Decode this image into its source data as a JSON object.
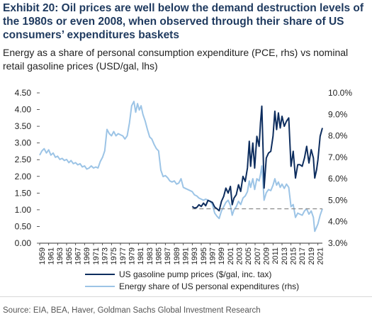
{
  "title": "Exhibit 20: Oil prices are well below the demand destruction levels of the 1980s or even 2008, when observed through their share of US consumers’ expenditures baskets",
  "subtitle": "Energy as a share of personal consumption expenditure (PCE, rhs) vs nominal retail gasoline prices (USD/gal, lhs)",
  "source": "Source: EIA, BEA, Haver, Goldman Sachs Global Investment Research",
  "colors": {
    "gasoline": "#0d2d5e",
    "energy_share": "#9cc4e6",
    "reference_line": "#8a8a8a",
    "axis": "#333333"
  },
  "chart_data": {
    "type": "line",
    "title": "",
    "xlabel": "",
    "ylabel_left": "",
    "ylabel_right": "",
    "xlim": [
      1959,
      2022
    ],
    "ylim_left": [
      0,
      4.5
    ],
    "ylim_right": [
      3,
      10
    ],
    "y_ticks_left": [
      "0.00",
      "0.50",
      "1.00",
      "1.50",
      "2.00",
      "2.50",
      "3.00",
      "3.50",
      "4.00",
      "4.50"
    ],
    "y_ticks_right": [
      "3.0%",
      "4.0%",
      "5.0%",
      "6.0%",
      "7.0%",
      "8.0%",
      "9.0%",
      "10.0%"
    ],
    "x_ticks": [
      "1959",
      "1961",
      "1963",
      "1965",
      "1967",
      "1969",
      "1971",
      "1973",
      "1975",
      "1977",
      "1979",
      "1981",
      "1983",
      "1985",
      "1987",
      "1989",
      "1991",
      "1993",
      "1995",
      "1997",
      "1999",
      "2001",
      "2003",
      "2005",
      "2007",
      "2009",
      "2011",
      "2013",
      "2015",
      "2017",
      "2019",
      "2021"
    ],
    "grid": false,
    "legend_position": "bottom",
    "series": [
      {
        "name": "US gasoline pump prices ($/gal, inc. tax)",
        "axis": "left",
        "points": [
          [
            1993.0,
            1.1
          ],
          [
            1993.5,
            1.05
          ],
          [
            1994.0,
            1.07
          ],
          [
            1994.5,
            1.15
          ],
          [
            1995.0,
            1.1
          ],
          [
            1995.5,
            1.2
          ],
          [
            1996.0,
            1.12
          ],
          [
            1996.5,
            1.28
          ],
          [
            1997.0,
            1.25
          ],
          [
            1997.5,
            1.22
          ],
          [
            1998.0,
            1.08
          ],
          [
            1998.5,
            1.03
          ],
          [
            1999.0,
            0.97
          ],
          [
            1999.5,
            1.25
          ],
          [
            2000.0,
            1.4
          ],
          [
            2000.5,
            1.65
          ],
          [
            2001.0,
            1.5
          ],
          [
            2001.5,
            1.7
          ],
          [
            2001.9,
            1.15
          ],
          [
            2002.3,
            1.35
          ],
          [
            2002.8,
            1.45
          ],
          [
            2003.3,
            1.75
          ],
          [
            2003.8,
            1.55
          ],
          [
            2004.3,
            2.0
          ],
          [
            2004.8,
            1.85
          ],
          [
            2005.3,
            2.25
          ],
          [
            2005.7,
            3.05
          ],
          [
            2006.0,
            2.3
          ],
          [
            2006.5,
            3.0
          ],
          [
            2006.9,
            2.25
          ],
          [
            2007.4,
            3.2
          ],
          [
            2007.9,
            2.9
          ],
          [
            2008.2,
            3.6
          ],
          [
            2008.5,
            4.1
          ],
          [
            2008.8,
            2.7
          ],
          [
            2009.0,
            1.65
          ],
          [
            2009.5,
            2.55
          ],
          [
            2010.0,
            2.7
          ],
          [
            2010.5,
            2.75
          ],
          [
            2011.0,
            3.2
          ],
          [
            2011.4,
            3.95
          ],
          [
            2011.8,
            3.4
          ],
          [
            2012.2,
            3.9
          ],
          [
            2012.6,
            3.45
          ],
          [
            2013.0,
            3.8
          ],
          [
            2013.5,
            3.5
          ],
          [
            2014.0,
            3.65
          ],
          [
            2014.5,
            3.75
          ],
          [
            2015.0,
            2.3
          ],
          [
            2015.5,
            2.75
          ],
          [
            2016.0,
            1.95
          ],
          [
            2016.5,
            2.35
          ],
          [
            2017.0,
            2.35
          ],
          [
            2017.5,
            2.3
          ],
          [
            2018.0,
            2.55
          ],
          [
            2018.5,
            2.9
          ],
          [
            2019.0,
            2.4
          ],
          [
            2019.5,
            2.8
          ],
          [
            2020.0,
            2.55
          ],
          [
            2020.3,
            1.95
          ],
          [
            2020.7,
            2.2
          ],
          [
            2021.0,
            2.5
          ],
          [
            2021.5,
            3.2
          ],
          [
            2022.0,
            3.45
          ]
        ]
      },
      {
        "name": "Energy share of US personal expenditures (rhs)",
        "axis": "right",
        "points": [
          [
            1959.0,
            7.1
          ],
          [
            1959.5,
            7.3
          ],
          [
            1960.0,
            7.4
          ],
          [
            1960.5,
            7.2
          ],
          [
            1961.0,
            7.35
          ],
          [
            1961.5,
            7.1
          ],
          [
            1962.0,
            7.2
          ],
          [
            1962.5,
            7.0
          ],
          [
            1963.0,
            7.05
          ],
          [
            1963.5,
            6.9
          ],
          [
            1964.0,
            6.95
          ],
          [
            1964.5,
            6.85
          ],
          [
            1965.0,
            6.9
          ],
          [
            1965.5,
            6.75
          ],
          [
            1966.0,
            6.85
          ],
          [
            1966.5,
            6.7
          ],
          [
            1967.0,
            6.75
          ],
          [
            1967.5,
            6.65
          ],
          [
            1968.0,
            6.7
          ],
          [
            1968.5,
            6.55
          ],
          [
            1969.0,
            6.6
          ],
          [
            1969.5,
            6.45
          ],
          [
            1970.0,
            6.5
          ],
          [
            1970.5,
            6.6
          ],
          [
            1971.0,
            6.5
          ],
          [
            1971.5,
            6.55
          ],
          [
            1972.0,
            6.5
          ],
          [
            1972.5,
            6.8
          ],
          [
            1973.0,
            7.0
          ],
          [
            1973.5,
            7.3
          ],
          [
            1974.0,
            8.3
          ],
          [
            1974.5,
            8.1
          ],
          [
            1975.0,
            8.0
          ],
          [
            1975.5,
            8.2
          ],
          [
            1976.0,
            8.0
          ],
          [
            1976.5,
            8.1
          ],
          [
            1977.0,
            8.05
          ],
          [
            1977.5,
            8.0
          ],
          [
            1978.0,
            7.85
          ],
          [
            1978.5,
            8.0
          ],
          [
            1979.0,
            8.6
          ],
          [
            1979.5,
            9.4
          ],
          [
            1980.0,
            9.6
          ],
          [
            1980.4,
            9.1
          ],
          [
            1980.8,
            9.5
          ],
          [
            1981.2,
            9.2
          ],
          [
            1981.6,
            9.4
          ],
          [
            1982.0,
            9.0
          ],
          [
            1982.5,
            8.7
          ],
          [
            1983.0,
            8.3
          ],
          [
            1983.5,
            7.95
          ],
          [
            1984.0,
            7.85
          ],
          [
            1984.5,
            7.6
          ],
          [
            1985.0,
            7.4
          ],
          [
            1985.5,
            7.3
          ],
          [
            1986.0,
            6.4
          ],
          [
            1986.5,
            6.1
          ],
          [
            1987.0,
            6.15
          ],
          [
            1987.5,
            6.05
          ],
          [
            1988.0,
            5.9
          ],
          [
            1988.5,
            5.85
          ],
          [
            1989.0,
            5.9
          ],
          [
            1989.5,
            5.75
          ],
          [
            1990.0,
            5.8
          ],
          [
            1990.5,
            6.0
          ],
          [
            1991.0,
            5.6
          ],
          [
            1991.5,
            5.55
          ],
          [
            1992.0,
            5.5
          ],
          [
            1992.5,
            5.45
          ],
          [
            1993.0,
            5.4
          ],
          [
            1993.5,
            5.25
          ],
          [
            1994.0,
            5.2
          ],
          [
            1994.5,
            5.1
          ],
          [
            1995.0,
            5.05
          ],
          [
            1995.5,
            5.0
          ],
          [
            1996.0,
            5.05
          ],
          [
            1996.5,
            5.0
          ],
          [
            1997.0,
            4.95
          ],
          [
            1997.5,
            4.8
          ],
          [
            1998.0,
            4.4
          ],
          [
            1998.5,
            4.25
          ],
          [
            1999.0,
            4.15
          ],
          [
            1999.5,
            4.5
          ],
          [
            2000.0,
            4.7
          ],
          [
            2000.5,
            4.9
          ],
          [
            2001.0,
            5.0
          ],
          [
            2001.5,
            4.75
          ],
          [
            2001.9,
            4.3
          ],
          [
            2002.3,
            4.55
          ],
          [
            2002.8,
            4.7
          ],
          [
            2003.3,
            4.95
          ],
          [
            2003.8,
            4.8
          ],
          [
            2004.3,
            5.1
          ],
          [
            2004.8,
            5.2
          ],
          [
            2005.3,
            5.4
          ],
          [
            2005.7,
            5.9
          ],
          [
            2006.0,
            5.6
          ],
          [
            2006.5,
            6.0
          ],
          [
            2006.9,
            5.5
          ],
          [
            2007.4,
            6.0
          ],
          [
            2007.9,
            5.9
          ],
          [
            2008.2,
            6.2
          ],
          [
            2008.5,
            6.6
          ],
          [
            2008.8,
            5.7
          ],
          [
            2009.0,
            5.0
          ],
          [
            2009.5,
            5.35
          ],
          [
            2010.0,
            5.5
          ],
          [
            2010.5,
            5.45
          ],
          [
            2011.0,
            5.7
          ],
          [
            2011.4,
            6.0
          ],
          [
            2011.8,
            5.7
          ],
          [
            2012.2,
            5.85
          ],
          [
            2012.6,
            5.6
          ],
          [
            2013.0,
            5.75
          ],
          [
            2013.5,
            5.55
          ],
          [
            2014.0,
            5.75
          ],
          [
            2014.5,
            5.6
          ],
          [
            2015.0,
            4.7
          ],
          [
            2015.5,
            4.8
          ],
          [
            2016.0,
            4.2
          ],
          [
            2016.5,
            4.4
          ],
          [
            2017.0,
            4.35
          ],
          [
            2017.5,
            4.3
          ],
          [
            2018.0,
            4.5
          ],
          [
            2018.5,
            4.6
          ],
          [
            2019.0,
            4.35
          ],
          [
            2019.5,
            4.5
          ],
          [
            2020.0,
            4.2
          ],
          [
            2020.3,
            3.55
          ],
          [
            2020.7,
            3.75
          ],
          [
            2021.0,
            3.9
          ],
          [
            2021.5,
            4.3
          ],
          [
            2022.0,
            4.6
          ]
        ]
      },
      {
        "name": "",
        "axis": "right",
        "style": "dashed",
        "points": [
          [
            1993.0,
            4.6
          ],
          [
            2022.0,
            4.6
          ]
        ]
      }
    ]
  }
}
